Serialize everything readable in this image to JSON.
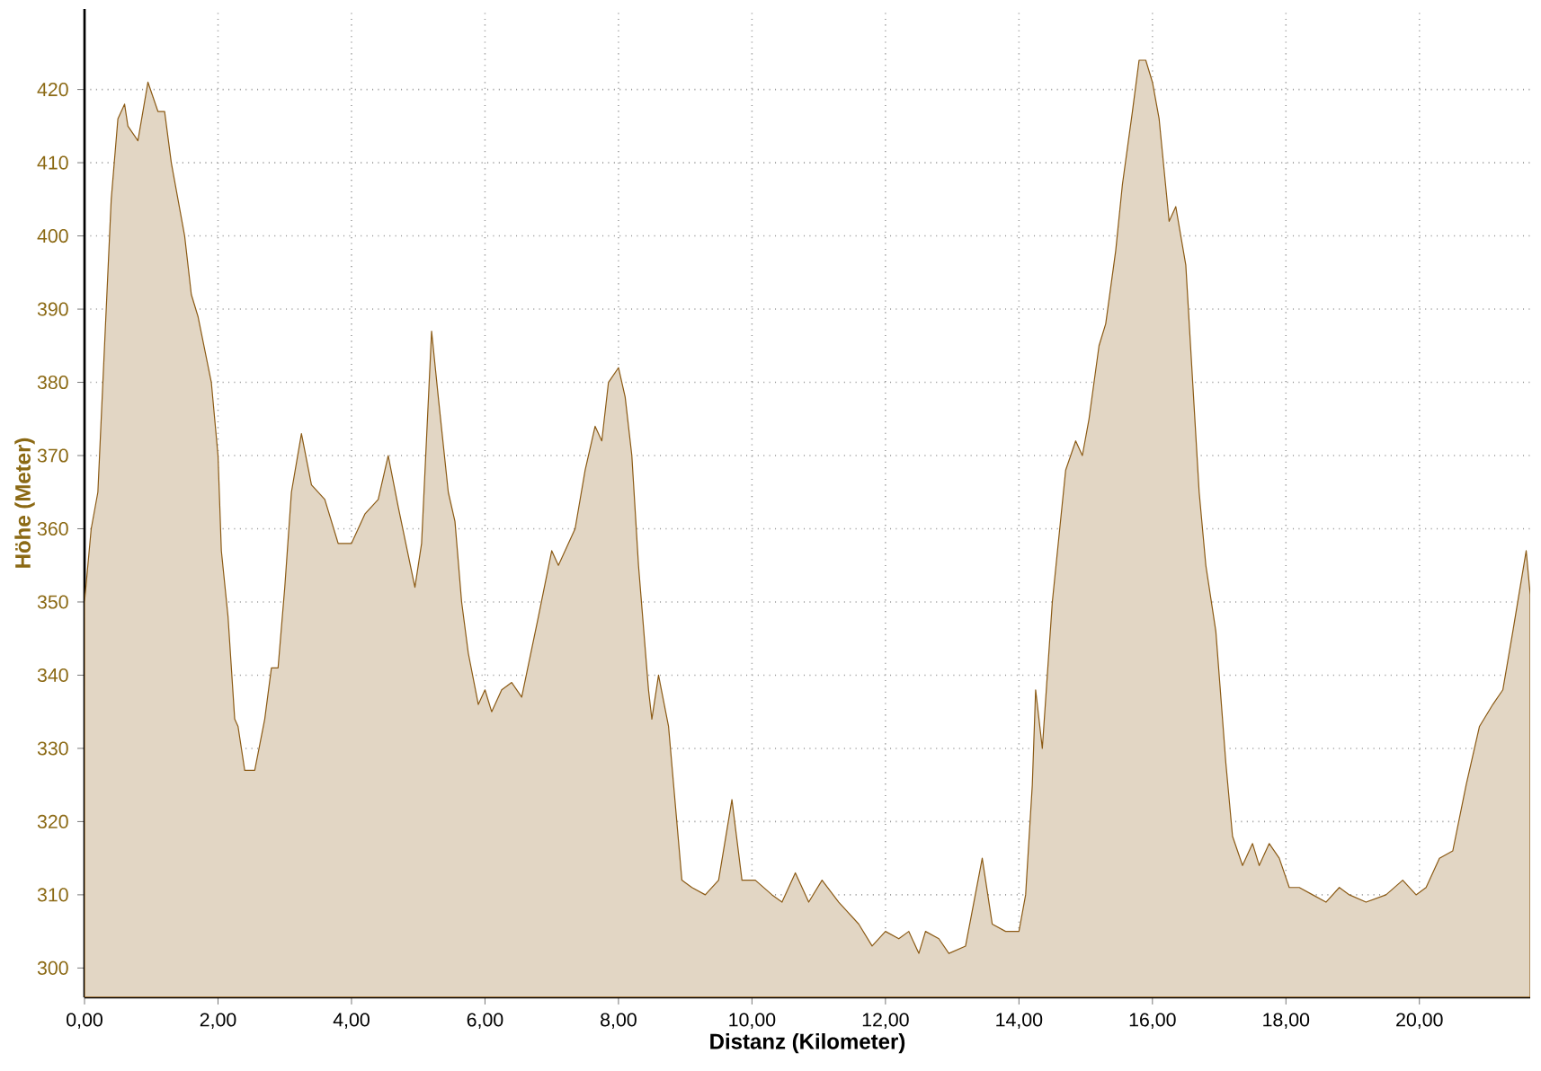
{
  "chart_data": {
    "type": "area",
    "xlabel": "Distanz (Kilometer)",
    "ylabel": "Höhe (Meter)",
    "x": [
      0.0,
      0.1,
      0.2,
      0.3,
      0.4,
      0.5,
      0.6,
      0.65,
      0.8,
      0.95,
      1.1,
      1.2,
      1.3,
      1.5,
      1.6,
      1.7,
      1.9,
      2.0,
      2.05,
      2.15,
      2.25,
      2.3,
      2.4,
      2.55,
      2.7,
      2.8,
      2.9,
      3.0,
      3.1,
      3.25,
      3.4,
      3.6,
      3.8,
      3.9,
      4.0,
      4.2,
      4.4,
      4.55,
      4.7,
      4.95,
      5.05,
      5.2,
      5.3,
      5.45,
      5.55,
      5.65,
      5.75,
      5.9,
      6.0,
      6.1,
      6.25,
      6.4,
      6.55,
      6.8,
      7.0,
      7.1,
      7.35,
      7.5,
      7.65,
      7.75,
      7.85,
      8.0,
      8.1,
      8.2,
      8.3,
      8.45,
      8.5,
      8.6,
      8.75,
      8.95,
      9.1,
      9.3,
      9.5,
      9.7,
      9.85,
      10.05,
      10.3,
      10.45,
      10.65,
      10.85,
      11.05,
      11.3,
      11.6,
      11.8,
      12.0,
      12.2,
      12.35,
      12.5,
      12.6,
      12.8,
      12.95,
      13.2,
      13.45,
      13.6,
      13.8,
      14.0,
      14.1,
      14.2,
      14.25,
      14.35,
      14.5,
      14.7,
      14.85,
      14.95,
      15.05,
      15.2,
      15.3,
      15.45,
      15.55,
      15.7,
      15.8,
      15.9,
      16.0,
      16.1,
      16.25,
      16.35,
      16.5,
      16.7,
      16.8,
      16.95,
      17.1,
      17.2,
      17.35,
      17.5,
      17.6,
      17.75,
      17.9,
      18.05,
      18.2,
      18.4,
      18.6,
      18.8,
      18.95,
      19.2,
      19.5,
      19.75,
      19.95,
      20.1,
      20.3,
      20.5,
      20.7,
      20.9,
      21.1,
      21.25,
      21.4,
      21.6,
      21.66
    ],
    "values": [
      350,
      360,
      365,
      385,
      405,
      416,
      418,
      415,
      413,
      421,
      417,
      417,
      410,
      400,
      392,
      389,
      380,
      370,
      357,
      348,
      334,
      333,
      327,
      327,
      334,
      341,
      341,
      352,
      365,
      373,
      366,
      364,
      358,
      358,
      358,
      362,
      364,
      370,
      363,
      352,
      358,
      387,
      378,
      365,
      361,
      350,
      343,
      336,
      338,
      335,
      338,
      339,
      337,
      348,
      357,
      355,
      360,
      368,
      374,
      372,
      380,
      382,
      378,
      370,
      355,
      338,
      334,
      340,
      333,
      312,
      311,
      310,
      312,
      323,
      312,
      312,
      310,
      309,
      313,
      309,
      312,
      309,
      306,
      303,
      305,
      304,
      305,
      302,
      305,
      304,
      302,
      303,
      315,
      306,
      305,
      305,
      310,
      325,
      338,
      330,
      350,
      368,
      372,
      370,
      375,
      385,
      388,
      398,
      407,
      417,
      424,
      424,
      421,
      416,
      402,
      404,
      396,
      365,
      355,
      346,
      328,
      318,
      314,
      317,
      314,
      317,
      315,
      311,
      311,
      310,
      309,
      311,
      310,
      309,
      310,
      312,
      310,
      311,
      315,
      316,
      325,
      333,
      336,
      338,
      346,
      357,
      351
    ],
    "color": "#e2d6c4",
    "xlim": [
      0,
      21.66
    ],
    "ylim": [
      296,
      431
    ],
    "xticks": [
      {
        "value": 0,
        "label": "0,00"
      },
      {
        "value": 2,
        "label": "2,00"
      },
      {
        "value": 4,
        "label": "4,00"
      },
      {
        "value": 6,
        "label": "6,00"
      },
      {
        "value": 8,
        "label": "8,00"
      },
      {
        "value": 10,
        "label": "10,00"
      },
      {
        "value": 12,
        "label": "12,00"
      },
      {
        "value": 14,
        "label": "14,00"
      },
      {
        "value": 16,
        "label": "16,00"
      },
      {
        "value": 18,
        "label": "18,00"
      },
      {
        "value": 20,
        "label": "20,00"
      }
    ],
    "yticks": [
      300,
      310,
      320,
      330,
      340,
      350,
      360,
      370,
      380,
      390,
      400,
      410,
      420
    ],
    "grid": true
  }
}
